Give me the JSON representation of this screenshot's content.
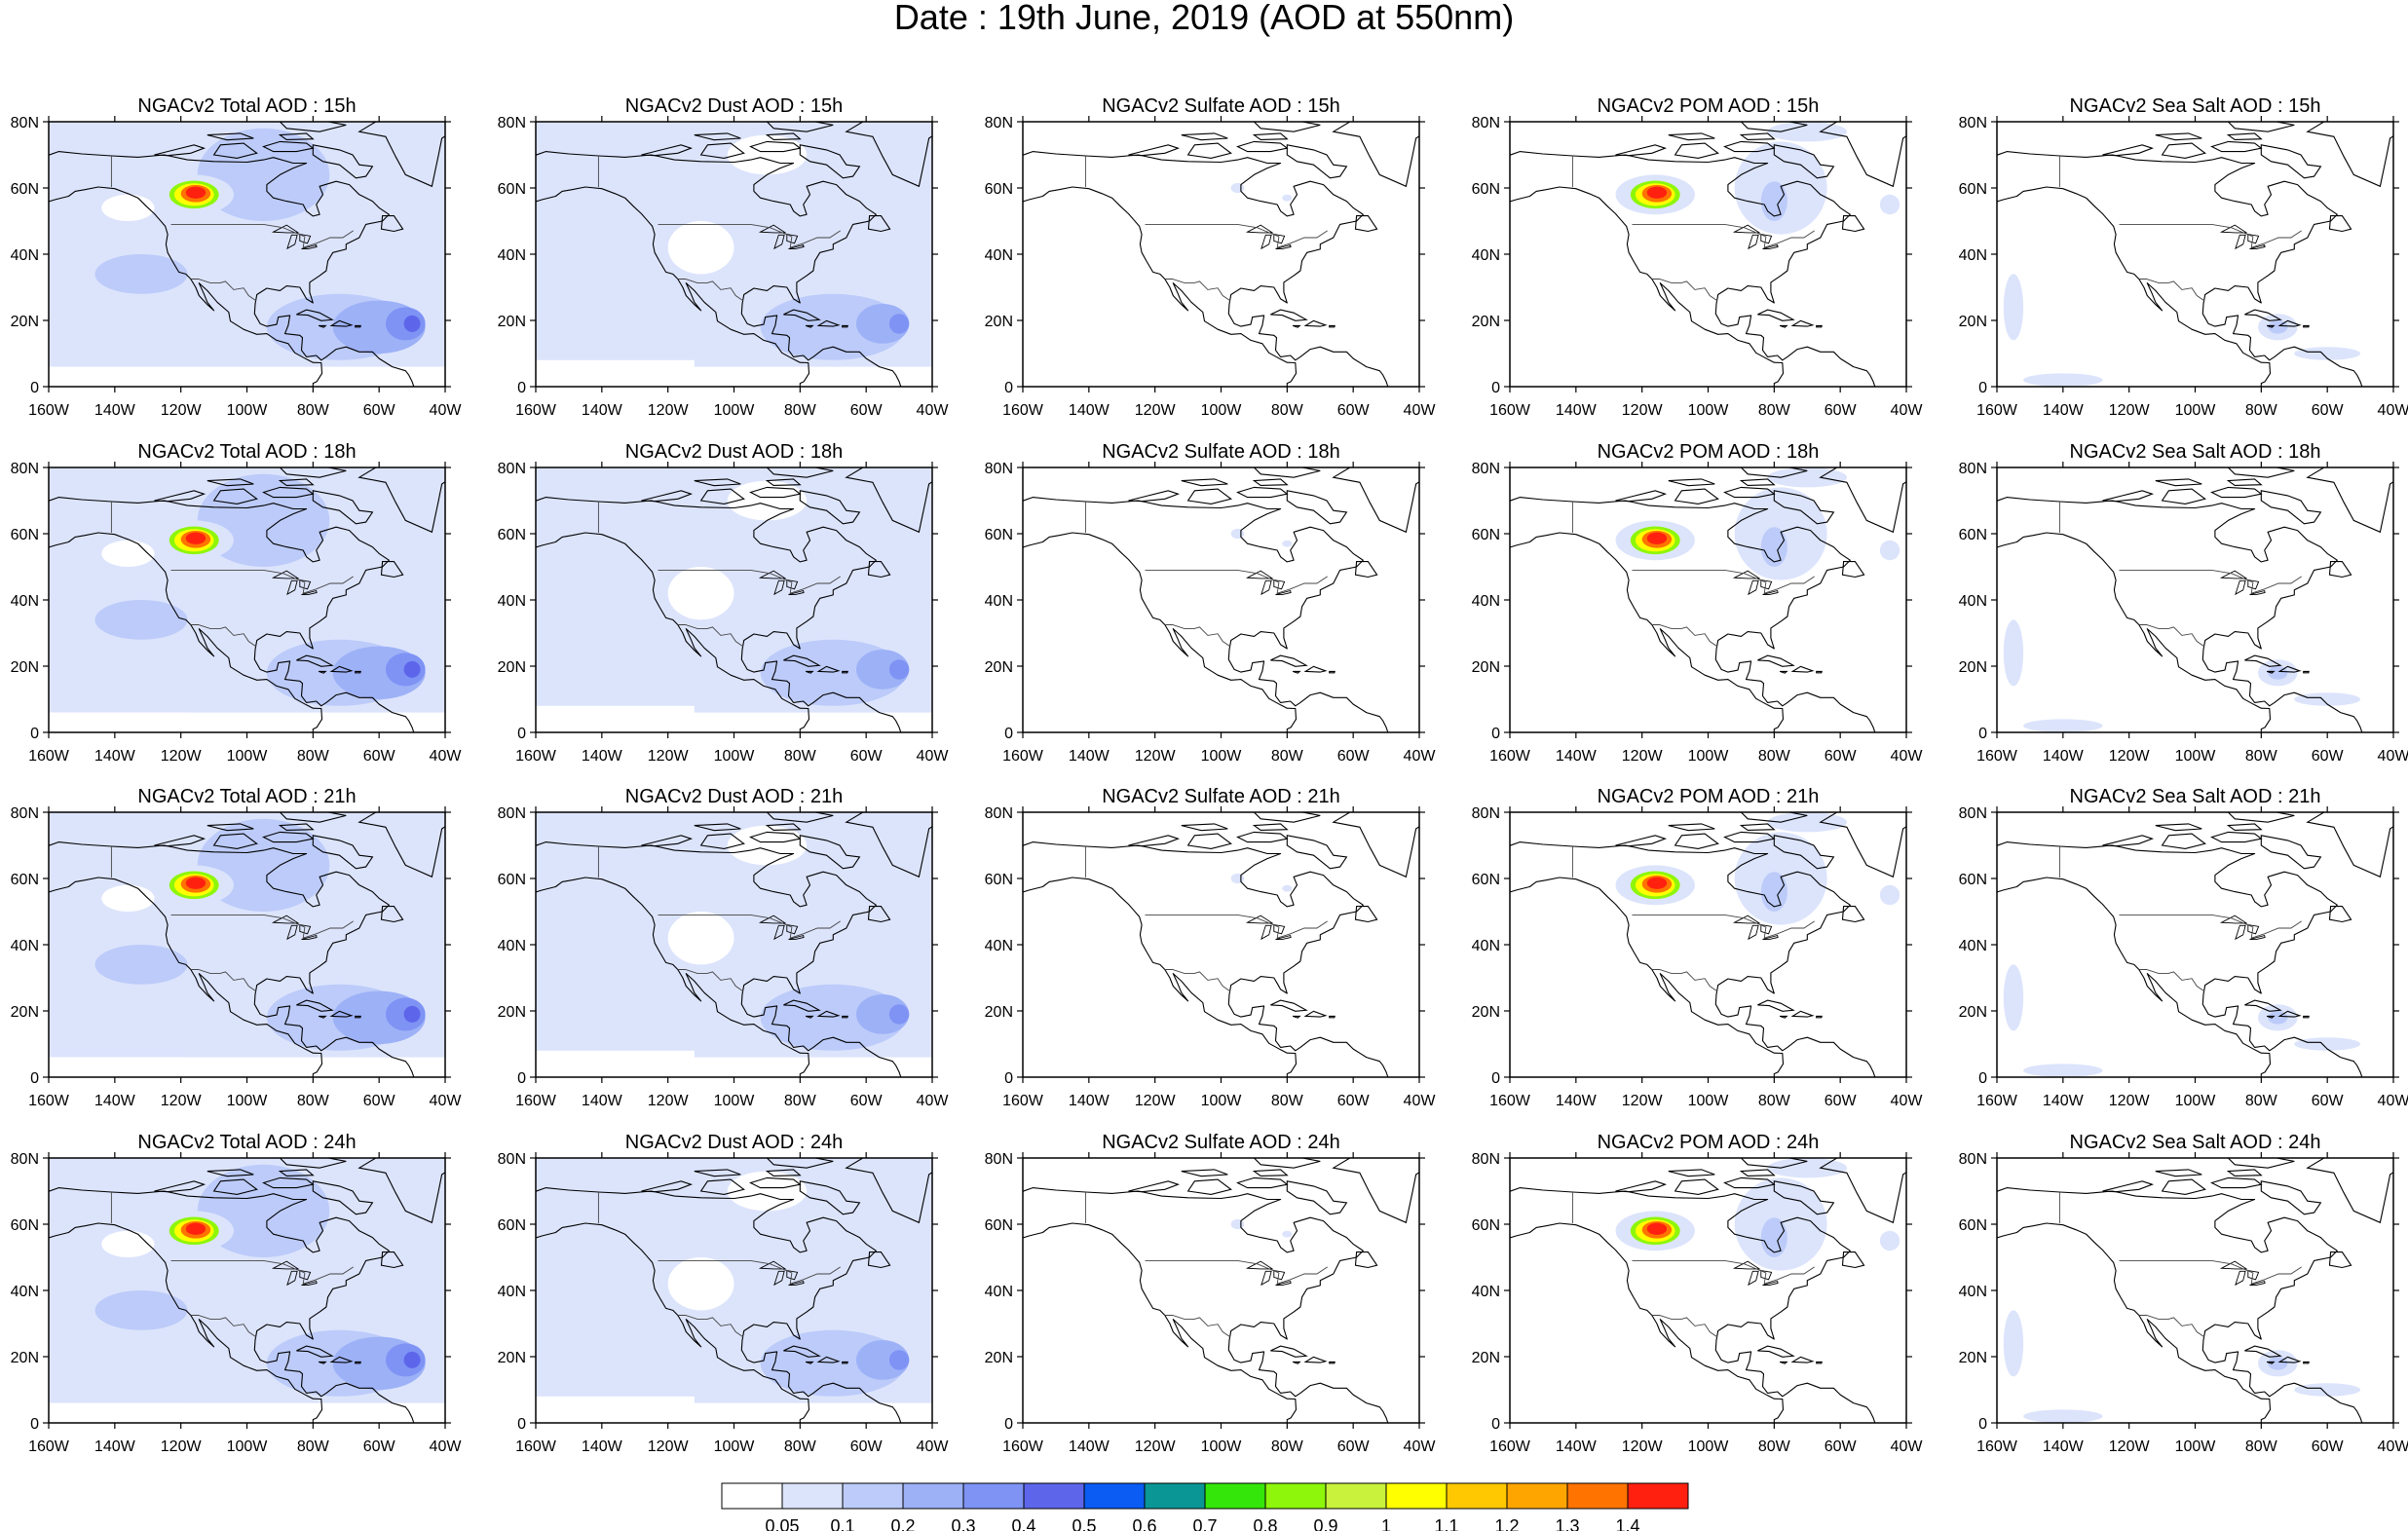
{
  "figure": {
    "title": "Date : 19th June, 2019 (AOD at 550nm)"
  },
  "axes": {
    "lat_labels": [
      "0",
      "20N",
      "40N",
      "60N",
      "80N"
    ],
    "lon_labels": [
      "160W",
      "140W",
      "120W",
      "100W",
      "80W",
      "60W",
      "40W"
    ]
  },
  "panels": [
    [
      "NGACv2 Total AOD : 15h",
      "NGACv2 Dust AOD : 15h",
      "NGACv2 Sulfate AOD : 15h",
      "NGACv2 POM AOD : 15h",
      "NGACv2 Sea Salt AOD : 15h"
    ],
    [
      "NGACv2 Total AOD : 18h",
      "NGACv2 Dust AOD : 18h",
      "NGACv2 Sulfate AOD : 18h",
      "NGACv2 POM AOD : 18h",
      "NGACv2 Sea Salt AOD : 18h"
    ],
    [
      "NGACv2 Total AOD : 21h",
      "NGACv2 Dust AOD : 21h",
      "NGACv2 Sulfate AOD : 21h",
      "NGACv2 POM AOD : 21h",
      "NGACv2 Sea Salt AOD : 21h"
    ],
    [
      "NGACv2 Total AOD : 24h",
      "NGACv2 Dust AOD : 24h",
      "NGACv2 Sulfate AOD : 24h",
      "NGACv2 POM AOD : 24h",
      "NGACv2 Sea Salt  AOD : 24h"
    ]
  ],
  "colorbar": {
    "labels": [
      "0.05",
      "0.1",
      "0.2",
      "0.3",
      "0.4",
      "0.5",
      "0.6",
      "0.7",
      "0.8",
      "0.9",
      "1",
      "1.1",
      "1.2",
      "1.3",
      "1.4"
    ],
    "colors": [
      "#ffffff",
      "#dce4fc",
      "#bccbf9",
      "#9db1f7",
      "#7e93f4",
      "#5d66ea",
      "#0a5cf2",
      "#0b9696",
      "#35e60a",
      "#8df60a",
      "#c8f23c",
      "#ffff00",
      "#ffc800",
      "#ffa500",
      "#ff7300",
      "#ff2010"
    ]
  }
}
